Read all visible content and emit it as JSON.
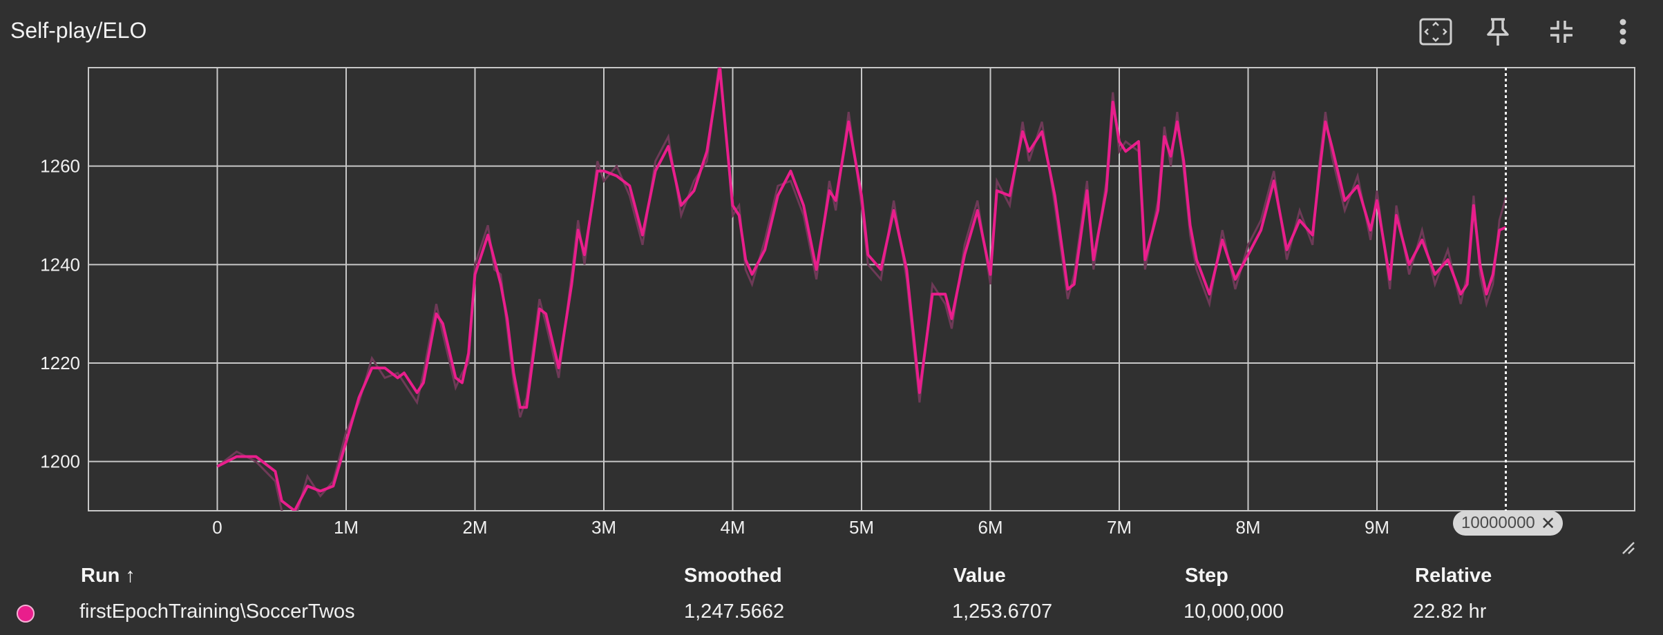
{
  "card": {
    "title": "Self-play/ELO",
    "icons": [
      "fit-to-domain-icon",
      "pin-icon",
      "collapse-icon",
      "more-vert-icon"
    ]
  },
  "colors": {
    "series": "#e91e8c",
    "raw": "#6e3a57",
    "grid": "#c8c8c8",
    "background": "#303030"
  },
  "chart_data": {
    "type": "line",
    "title": "Self-play/ELO",
    "xlabel": "",
    "ylabel": "",
    "xlim": [
      -1000000,
      11000000
    ],
    "ylim": [
      1190,
      1280
    ],
    "x_ticks": [
      0,
      1000000,
      2000000,
      3000000,
      4000000,
      5000000,
      6000000,
      7000000,
      8000000,
      9000000
    ],
    "x_tick_labels": [
      "0",
      "1M",
      "2M",
      "3M",
      "4M",
      "5M",
      "6M",
      "7M",
      "8M",
      "9M"
    ],
    "y_ticks": [
      1200,
      1220,
      1240,
      1260
    ],
    "y_tick_labels": [
      "1200",
      "1220",
      "1240",
      "1260"
    ],
    "grid": true,
    "legend": "none",
    "series": [
      {
        "name": "firstEpochTraining\\SoccerTwos",
        "x": [
          0,
          150000,
          300000,
          450000,
          500000,
          600000,
          700000,
          800000,
          900000,
          1000000,
          1100000,
          1200000,
          1300000,
          1400000,
          1450000,
          1550000,
          1600000,
          1700000,
          1750000,
          1850000,
          1900000,
          1950000,
          2000000,
          2100000,
          2150000,
          2200000,
          2250000,
          2300000,
          2350000,
          2400000,
          2500000,
          2550000,
          2650000,
          2750000,
          2800000,
          2850000,
          2950000,
          3000000,
          3100000,
          3200000,
          3300000,
          3400000,
          3500000,
          3600000,
          3700000,
          3800000,
          3900000,
          4000000,
          4050000,
          4100000,
          4150000,
          4250000,
          4350000,
          4450000,
          4550000,
          4650000,
          4750000,
          4800000,
          4900000,
          5000000,
          5050000,
          5150000,
          5250000,
          5350000,
          5450000,
          5550000,
          5650000,
          5700000,
          5800000,
          5900000,
          6000000,
          6050000,
          6150000,
          6250000,
          6300000,
          6400000,
          6500000,
          6600000,
          6650000,
          6750000,
          6800000,
          6900000,
          6950000,
          7000000,
          7050000,
          7150000,
          7200000,
          7300000,
          7350000,
          7400000,
          7450000,
          7500000,
          7550000,
          7600000,
          7700000,
          7800000,
          7900000,
          8000000,
          8100000,
          8200000,
          8300000,
          8400000,
          8500000,
          8550000,
          8600000,
          8650000,
          8750000,
          8850000,
          8950000,
          9000000,
          9100000,
          9150000,
          9250000,
          9350000,
          9450000,
          9550000,
          9650000,
          9700000,
          9750000,
          9800000,
          9850000,
          9900000,
          9950000,
          10000000
        ],
        "smoothed": [
          1199,
          1201,
          1201,
          1198,
          1192,
          1190,
          1195,
          1194,
          1195,
          1204,
          1213,
          1219,
          1219,
          1217,
          1218,
          1214,
          1216,
          1230,
          1228,
          1217,
          1216,
          1222,
          1238,
          1246,
          1241,
          1236,
          1229,
          1218,
          1211,
          1211,
          1231,
          1230,
          1219,
          1236,
          1247,
          1242,
          1259,
          1259,
          1258,
          1256,
          1246,
          1259,
          1264,
          1252,
          1255,
          1263,
          1280,
          1252,
          1250,
          1241,
          1238,
          1243,
          1254,
          1259,
          1252,
          1239,
          1255,
          1253,
          1269,
          1254,
          1242,
          1239,
          1251,
          1239,
          1214,
          1234,
          1234,
          1229,
          1242,
          1251,
          1238,
          1255,
          1254,
          1267,
          1263,
          1267,
          1254,
          1235,
          1236,
          1255,
          1241,
          1255,
          1273,
          1265,
          1263,
          1265,
          1241,
          1251,
          1266,
          1262,
          1269,
          1261,
          1248,
          1241,
          1234,
          1245,
          1237,
          1242,
          1247,
          1257,
          1243,
          1249,
          1246,
          1258,
          1269,
          1264,
          1253,
          1256,
          1247,
          1253,
          1237,
          1250,
          1240,
          1245,
          1238,
          1241,
          1234,
          1236,
          1252,
          1240,
          1234,
          1238,
          1247,
          1247.5662
        ],
        "value": [
          1199,
          1202,
          1200,
          1196,
          1190,
          1188,
          1197,
          1193,
          1196,
          1206,
          1212,
          1221,
          1217,
          1218,
          1216,
          1212,
          1218,
          1232,
          1226,
          1215,
          1218,
          1220,
          1240,
          1248,
          1239,
          1238,
          1227,
          1216,
          1209,
          1213,
          1233,
          1228,
          1217,
          1238,
          1249,
          1240,
          1261,
          1257,
          1260,
          1254,
          1244,
          1261,
          1266,
          1250,
          1257,
          1261,
          1282,
          1250,
          1252,
          1239,
          1236,
          1245,
          1256,
          1257,
          1250,
          1237,
          1257,
          1251,
          1271,
          1252,
          1240,
          1237,
          1253,
          1237,
          1212,
          1236,
          1232,
          1227,
          1244,
          1253,
          1236,
          1257,
          1252,
          1269,
          1261,
          1269,
          1252,
          1233,
          1238,
          1257,
          1239,
          1257,
          1275,
          1263,
          1265,
          1263,
          1239,
          1253,
          1268,
          1260,
          1271,
          1259,
          1246,
          1239,
          1232,
          1247,
          1235,
          1244,
          1249,
          1259,
          1241,
          1251,
          1244,
          1260,
          1271,
          1262,
          1251,
          1258,
          1245,
          1255,
          1235,
          1252,
          1238,
          1247,
          1236,
          1243,
          1232,
          1238,
          1254,
          1238,
          1232,
          1236,
          1249,
          1253.6707
        ]
      }
    ],
    "cursor_step": 10000000
  },
  "cursor_chip": {
    "label": "10000000",
    "close": "✕"
  },
  "table": {
    "headers": {
      "run": "Run ↑",
      "smoothed": "Smoothed",
      "value": "Value",
      "step": "Step",
      "relative": "Relative"
    },
    "rows": [
      {
        "run": "firstEpochTraining\\SoccerTwos",
        "smoothed": "1,247.5662",
        "value": "1,253.6707",
        "step": "10,000,000",
        "relative": "22.82 hr"
      }
    ]
  }
}
